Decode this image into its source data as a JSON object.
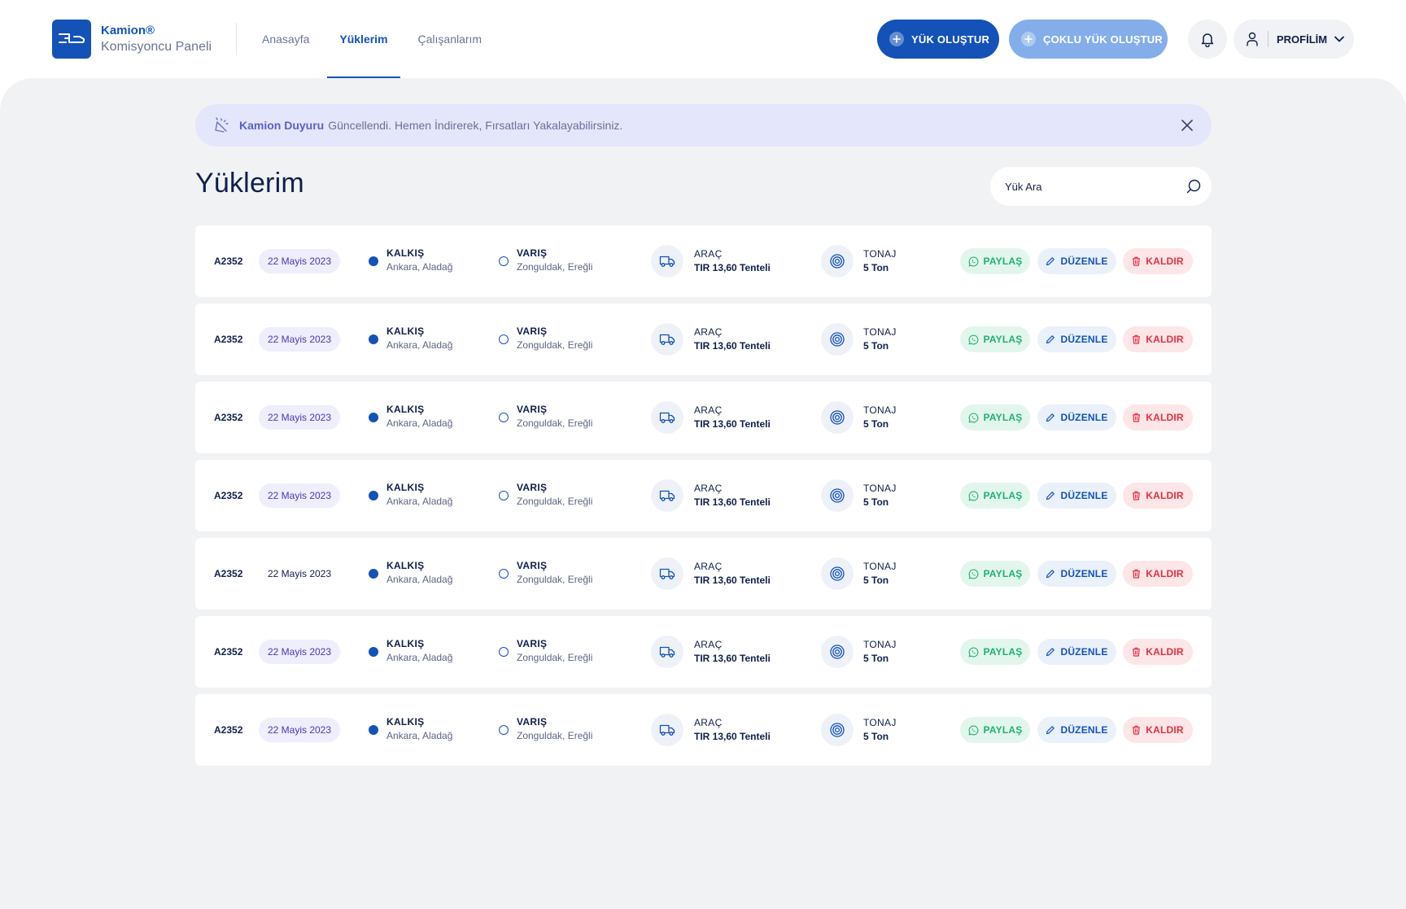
{
  "header": {
    "brand_name": "Kamion®",
    "brand_sub": "Komisyoncu Paneli",
    "nav": [
      {
        "label": "Anasayfa",
        "active": false
      },
      {
        "label": "Yüklerim",
        "active": true
      },
      {
        "label": "Çalışanlarım",
        "active": false
      }
    ],
    "create_label": "YÜK OLUŞTUR",
    "bulk_create_label": "ÇOKLU YÜK OLUŞTUR",
    "profile_label": "PROFİLİM"
  },
  "announcement": {
    "strong": "Kamion Duyuru",
    "text": "Güncellendi. Hemen İndirerek, Fırsatları Yakalayabilirsiniz."
  },
  "page": {
    "title": "Yüklerim",
    "search_placeholder": "Yük Ara"
  },
  "labels": {
    "kalkis": "KALKIŞ",
    "varis": "VARIŞ",
    "arac": "ARAÇ",
    "tonaj": "TONAJ",
    "share": "PAYLAŞ",
    "edit": "DÜZENLE",
    "remove": "KALDIR"
  },
  "loads": [
    {
      "id": "A2352",
      "date": "22 Mayis 2023",
      "date_highlight": true,
      "from": "Ankara, Aladağ",
      "to": "Zonguldak, Ereğli",
      "vehicle": "TIR 13,60 Tenteli",
      "tonnage": "5 Ton"
    },
    {
      "id": "A2352",
      "date": "22 Mayis 2023",
      "date_highlight": true,
      "from": "Ankara, Aladağ",
      "to": "Zonguldak, Ereğli",
      "vehicle": "TIR 13,60 Tenteli",
      "tonnage": "5 Ton"
    },
    {
      "id": "A2352",
      "date": "22 Mayis 2023",
      "date_highlight": true,
      "from": "Ankara, Aladağ",
      "to": "Zonguldak, Ereğli",
      "vehicle": "TIR 13,60 Tenteli",
      "tonnage": "5 Ton"
    },
    {
      "id": "A2352",
      "date": "22 Mayis 2023",
      "date_highlight": true,
      "from": "Ankara, Aladağ",
      "to": "Zonguldak, Ereğli",
      "vehicle": "TIR 13,60 Tenteli",
      "tonnage": "5 Ton"
    },
    {
      "id": "A2352",
      "date": "22 Mayis 2023",
      "date_highlight": false,
      "from": "Ankara, Aladağ",
      "to": "Zonguldak, Ereğli",
      "vehicle": "TIR 13,60 Tenteli",
      "tonnage": "5 Ton"
    },
    {
      "id": "A2352",
      "date": "22 Mayis 2023",
      "date_highlight": true,
      "from": "Ankara, Aladağ",
      "to": "Zonguldak, Ereğli",
      "vehicle": "TIR 13,60 Tenteli",
      "tonnage": "5 Ton"
    },
    {
      "id": "A2352",
      "date": "22 Mayis 2023",
      "date_highlight": true,
      "from": "Ankara, Aladağ",
      "to": "Zonguldak, Ereğli",
      "vehicle": "TIR 13,60 Tenteli",
      "tonnage": "5 Ton"
    }
  ],
  "colors": {
    "primary": "#1452b8",
    "primary_light": "#84aeea",
    "background": "#f1f2f4",
    "share": "#1fb271",
    "remove": "#e2303f",
    "announcement_bg": "#e4e6fb"
  },
  "icons": {
    "logo": "truck-logo-icon",
    "plus": "plus-circle-icon",
    "bell": "bell-icon",
    "user": "user-icon",
    "chevron": "chevron-down-icon",
    "announce": "sparkle-announce-icon",
    "close": "close-icon",
    "search": "search-icon",
    "truck": "truck-icon",
    "target": "target-icon",
    "whatsapp": "whatsapp-icon",
    "pencil": "pencil-icon",
    "trash": "trash-icon"
  }
}
